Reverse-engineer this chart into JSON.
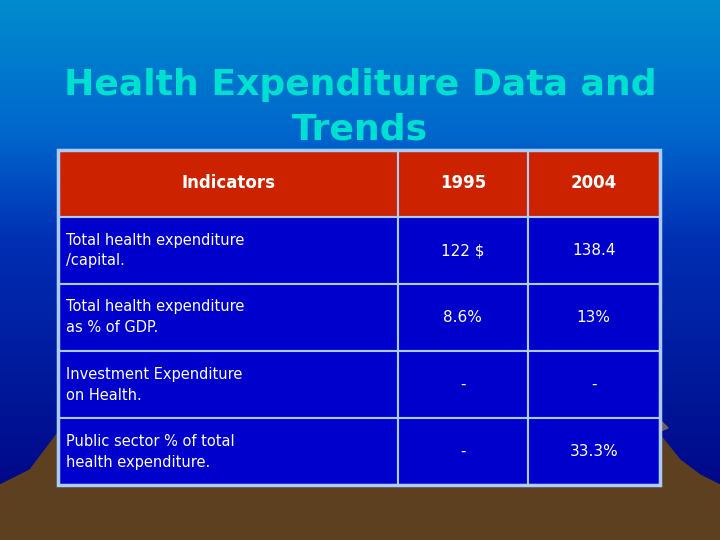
{
  "title_line1": "Health Expenditure Data and",
  "title_line2": "Trends",
  "title_color": "#00E0D0",
  "title_fontsize": 26,
  "bg_top_color": "#000080",
  "bg_mid_color": "#003090",
  "bg_lower_color": "#0070B0",
  "table_header": [
    "Indicators",
    "1995",
    "2004"
  ],
  "table_rows": [
    [
      "Total health expenditure\n/capital.",
      "122 $",
      "138.4"
    ],
    [
      "Total health expenditure\nas % of GDP.",
      "8.6%",
      "13%"
    ],
    [
      "Investment Expenditure\non Health.",
      "-",
      "-"
    ],
    [
      "Public sector % of total\nhealth expenditure.",
      "-",
      "33.3%"
    ]
  ],
  "header_bg": "#CC2200",
  "header_text_color": "#FFFFFF",
  "row_bg": "#0000CC",
  "row_text_color": "#FFFFFF",
  "border_color": "#AACCFF",
  "mountain_color": "#5C4020",
  "mountain_shadow": "#3A2810",
  "horizon_color": "#00D0B0",
  "water_color": "#00B090"
}
